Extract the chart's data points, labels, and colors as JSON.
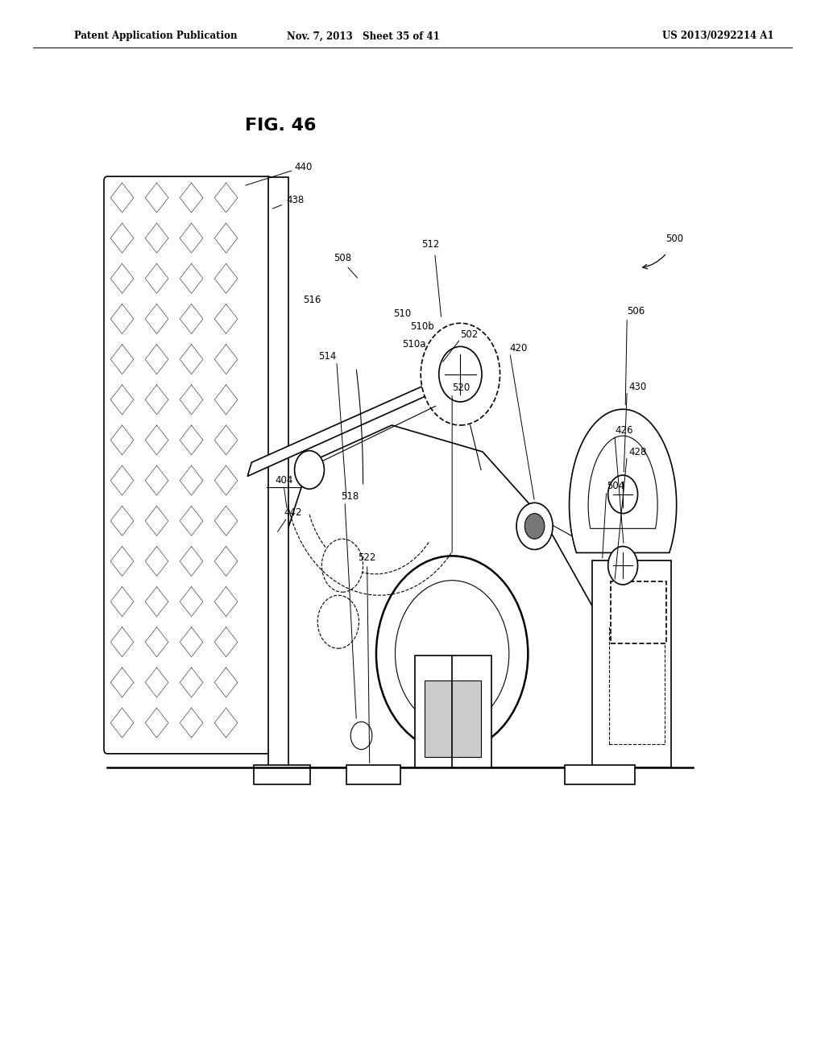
{
  "bg_color": "#ffffff",
  "line_color": "#000000",
  "header_left": "Patent Application Publication",
  "header_mid": "Nov. 7, 2013   Sheet 35 of 41",
  "header_right": "US 2013/0292214 A1",
  "fig_label": "FIG. 46"
}
